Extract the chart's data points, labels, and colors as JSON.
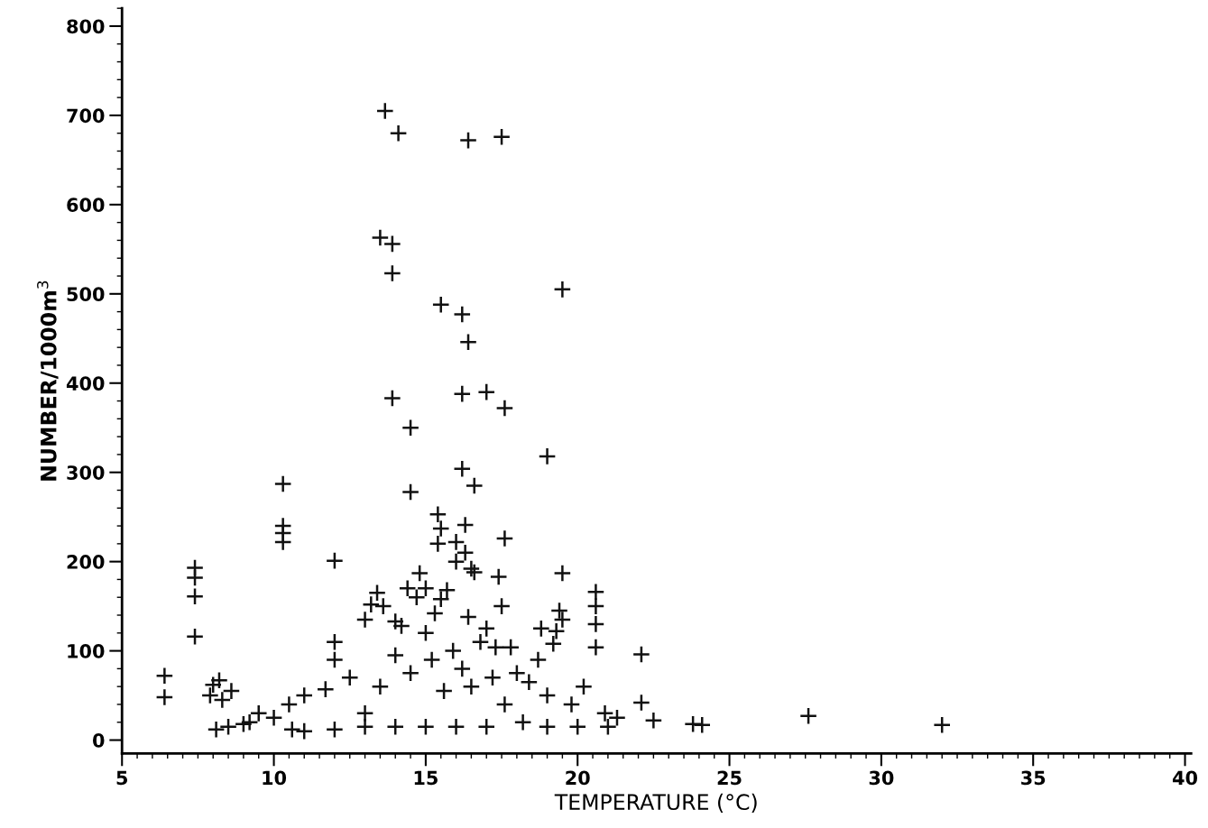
{
  "chart_data": {
    "type": "scatter",
    "xlabel": "TEMPERATURE (°C)",
    "ylabel": "NUMBER/1000m$^{3}$",
    "xlim": [
      5,
      40.2
    ],
    "ylim": [
      -15,
      820
    ],
    "xticks": [
      5,
      10,
      15,
      20,
      25,
      30,
      35,
      40
    ],
    "yticks": [
      0,
      100,
      200,
      300,
      400,
      500,
      600,
      700,
      800
    ],
    "grid": false,
    "marker": "cross",
    "series": [
      {
        "color": "#111111",
        "x": [
          13.66,
          14.1,
          16.4,
          17.5,
          13.5,
          13.9,
          13.9,
          15.5,
          16.2,
          16.4,
          19.5,
          13.9,
          16.2,
          17.0,
          17.6,
          14.5,
          19.0,
          10.3,
          16.2,
          14.5,
          16.6,
          15.4,
          15.5,
          16.3,
          15.4,
          16.0,
          16.3,
          16.0,
          16.5,
          16.6,
          17.4,
          17.6,
          19.5,
          12.0,
          10.3,
          10.3,
          10.3,
          7.4,
          7.4,
          7.4,
          7.4,
          6.4,
          6.4,
          8.2,
          8.0,
          8.3,
          7.9,
          8.6,
          13.4,
          13.2,
          13.0,
          13.6,
          14.8,
          15.0,
          14.4,
          14.7,
          14.0,
          14.2,
          15.3,
          15.5,
          15.7,
          16.4,
          17.0,
          17.5,
          17.3,
          17.8,
          18.8,
          19.2,
          19.4,
          19.5,
          19.3,
          20.6,
          20.6,
          20.6,
          20.6,
          22.1,
          22.1,
          12.0,
          12.0,
          11.7,
          11.0,
          10.5,
          10.0,
          22.5,
          23.8,
          24.1,
          27.6,
          32.0,
          9.5,
          9.0,
          12.5,
          13.0,
          13.5,
          14.0,
          14.5,
          15.0,
          15.2,
          15.6,
          15.9,
          16.2,
          16.5,
          16.8,
          17.2,
          17.6,
          18.0,
          18.4,
          18.7,
          19.0,
          19.8,
          20.2,
          20.9,
          21.3,
          18.2,
          17.0,
          16.0,
          15.0,
          14.0,
          13.0,
          12.0,
          11.0,
          10.6,
          19.0,
          20.0,
          21.0,
          8.5,
          8.1,
          9.2
        ],
        "values": [
          705,
          680,
          672,
          676,
          563,
          556,
          523,
          488,
          477,
          446,
          505,
          383,
          388,
          390,
          372,
          350,
          318,
          287,
          304,
          278,
          285,
          253,
          237,
          241,
          220,
          222,
          210,
          200,
          192,
          188,
          183,
          226,
          187,
          201,
          240,
          232,
          222,
          193,
          182,
          161,
          116,
          72,
          48,
          67,
          62,
          45,
          50,
          55,
          165,
          152,
          135,
          150,
          187,
          170,
          170,
          160,
          133,
          128,
          142,
          158,
          168,
          138,
          125,
          150,
          104,
          104,
          125,
          108,
          145,
          135,
          122,
          166,
          150,
          130,
          104,
          96,
          42,
          110,
          90,
          57,
          50,
          40,
          25,
          22,
          18,
          17,
          27,
          17,
          30,
          18,
          70,
          30,
          60,
          95,
          75,
          120,
          90,
          55,
          100,
          80,
          60,
          110,
          70,
          40,
          75,
          65,
          90,
          50,
          40,
          60,
          30,
          25,
          20,
          15,
          15,
          15,
          15,
          15,
          12,
          10,
          12,
          15,
          15,
          15,
          15,
          12,
          20
        ]
      }
    ]
  }
}
